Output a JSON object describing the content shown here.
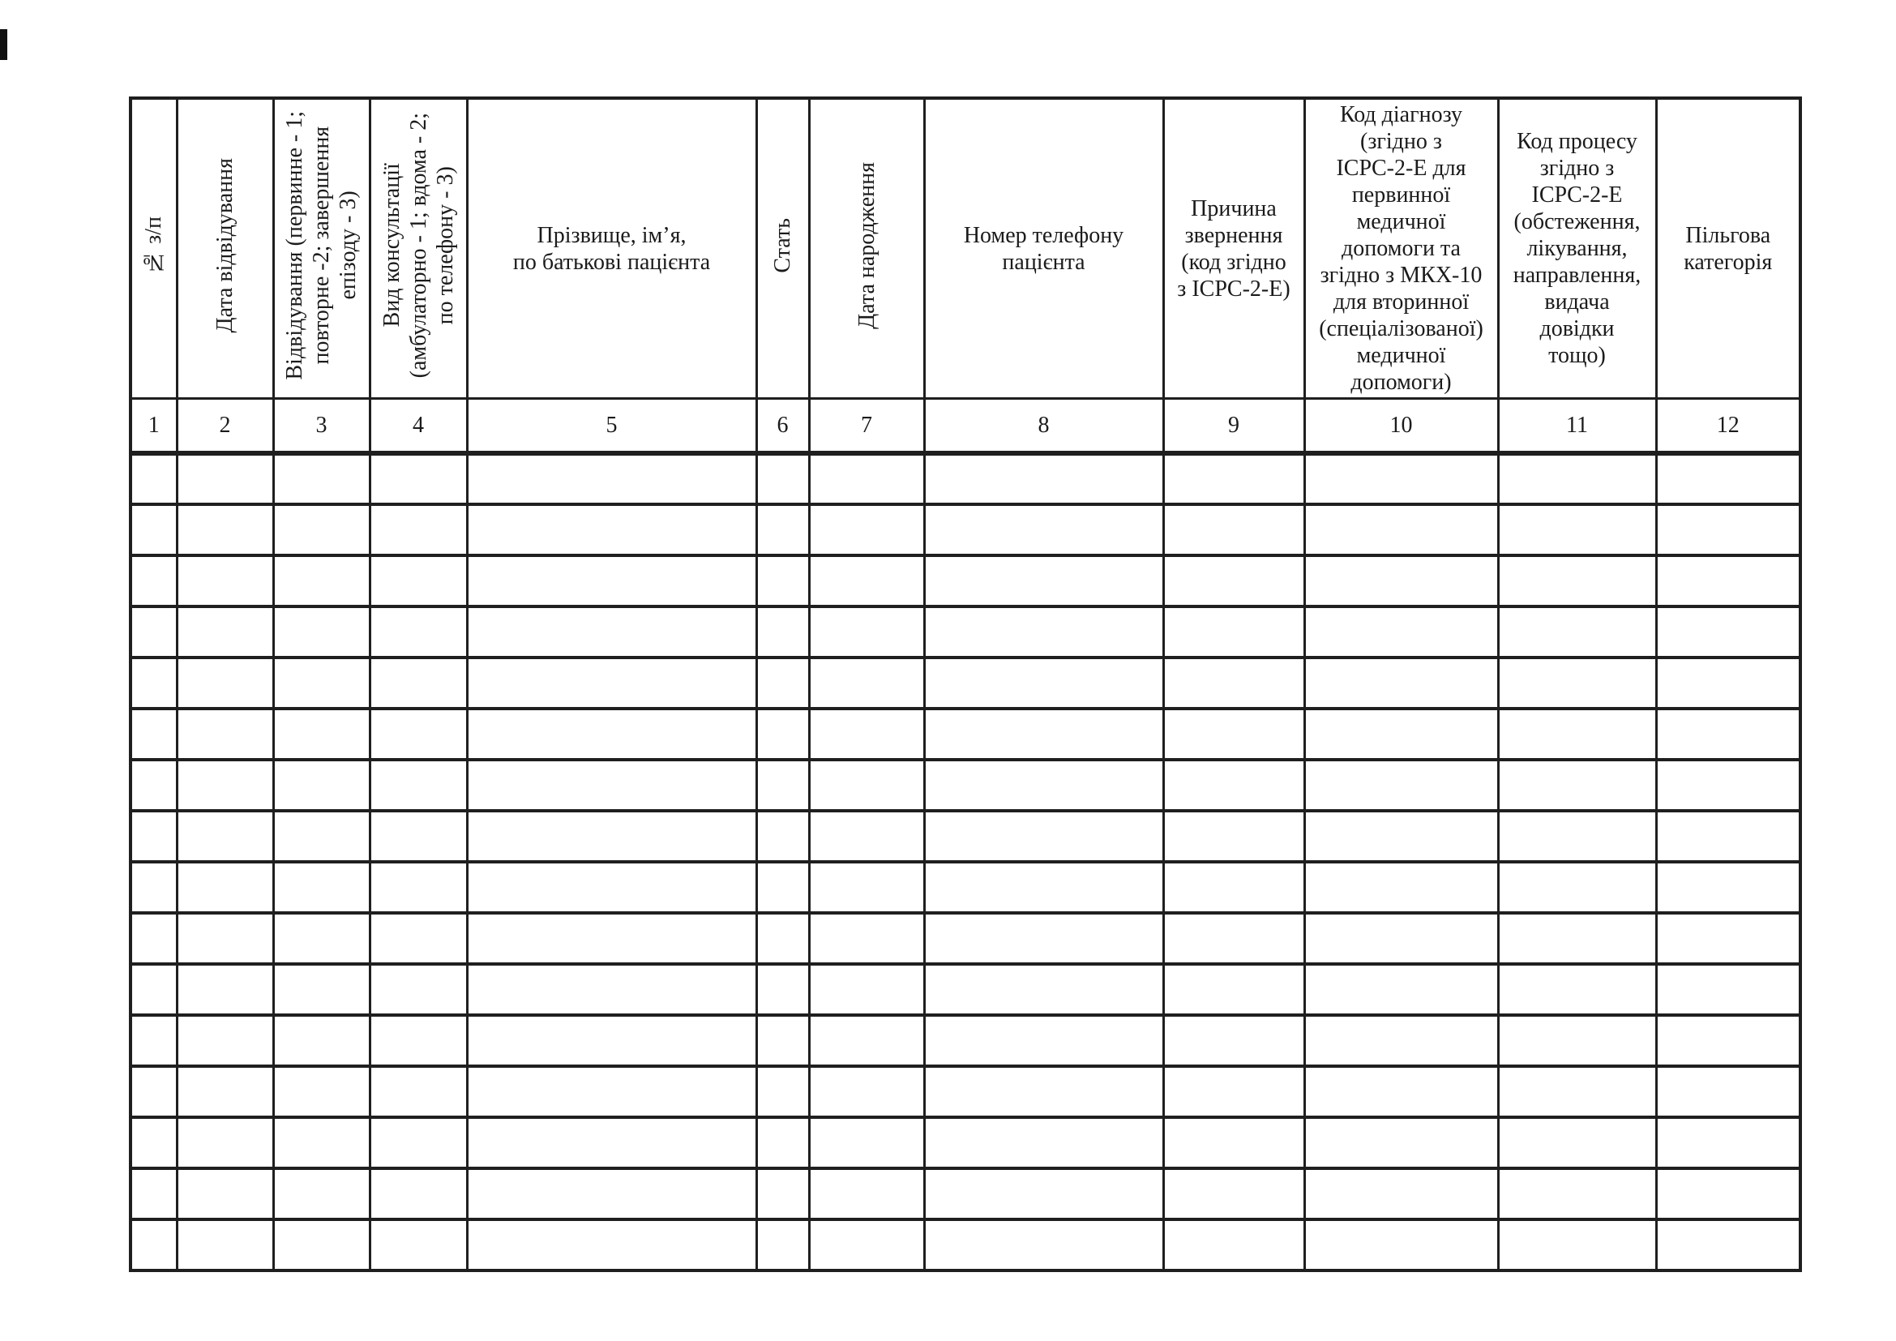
{
  "table": {
    "empty_row_count": 16,
    "columns": [
      {
        "index": "1",
        "label": "№ з/п"
      },
      {
        "index": "2",
        "label": "Дата відвідування"
      },
      {
        "index": "3",
        "label": "Відвідування (первинне - 1;\nповторне -2; завершення\nепізоду - 3)"
      },
      {
        "index": "4",
        "label": "Вид консультації\n(амбулаторно - 1; вдома - 2;\nпо телефону - 3)"
      },
      {
        "index": "5",
        "label": "Прізвище, ім’я,\nпо батькові пацієнта"
      },
      {
        "index": "6",
        "label": "Стать"
      },
      {
        "index": "7",
        "label": "Дата народження"
      },
      {
        "index": "8",
        "label": "Номер телефону\nпацієнта"
      },
      {
        "index": "9",
        "label": "Причина\nзвернення\n(код згідно\nз ICPC-2-E)"
      },
      {
        "index": "10",
        "label": "Код діагнозу\n(згідно з\nICPC-2-E для\nпервинної\nмедичної\nдопомоги та\nзгідно з МКХ-10\nдля вторинної\n(спеціалізованої)\nмедичної\nдопомоги)"
      },
      {
        "index": "11",
        "label": "Код процесу\nзгідно з\nICPC-2-E\n(обстеження,\nлікування,\nнаправлення,\nвидача\nдовідки\nтощо)"
      },
      {
        "index": "12",
        "label": "Пільгова\nкатегорія"
      }
    ]
  }
}
